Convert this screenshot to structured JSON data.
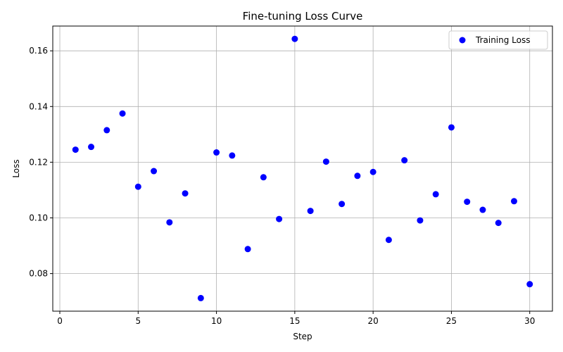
{
  "chart_data": {
    "type": "scatter",
    "title": "Fine-tuning Loss Curve",
    "xlabel": "Step",
    "ylabel": "Loss",
    "xlim": [
      -0.45,
      31.45
    ],
    "ylim": [
      0.0665,
      0.1689
    ],
    "xticks": [
      0,
      5,
      10,
      15,
      20,
      25,
      30
    ],
    "yticks": [
      0.08,
      0.1,
      0.12,
      0.14,
      0.16
    ],
    "xtick_labels": [
      "0",
      "5",
      "10",
      "15",
      "20",
      "25",
      "30"
    ],
    "ytick_labels": [
      "0.08",
      "0.10",
      "0.12",
      "0.14",
      "0.16"
    ],
    "grid": true,
    "legend_position": "top-right",
    "series": [
      {
        "name": "Training Loss",
        "color": "#0000ff",
        "x": [
          1,
          2,
          3,
          4,
          5,
          6,
          7,
          8,
          9,
          10,
          11,
          12,
          13,
          14,
          15,
          16,
          17,
          18,
          19,
          20,
          21,
          22,
          23,
          24,
          25,
          26,
          27,
          28,
          29,
          30
        ],
        "y": [
          0.1245,
          0.1255,
          0.1315,
          0.1375,
          0.1112,
          0.1168,
          0.0984,
          0.1088,
          0.0712,
          0.1235,
          0.1224,
          0.0888,
          0.1146,
          0.0996,
          0.1643,
          0.1025,
          0.1202,
          0.105,
          0.1151,
          0.1165,
          0.0921,
          0.1207,
          0.0991,
          0.1085,
          0.1325,
          0.1058,
          0.1029,
          0.0982,
          0.106,
          0.0762
        ]
      }
    ]
  }
}
